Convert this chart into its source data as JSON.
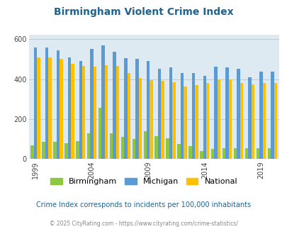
{
  "title": "Birmingham Violent Crime Index",
  "years": [
    1999,
    2000,
    2001,
    2002,
    2003,
    2004,
    2005,
    2006,
    2007,
    2008,
    2009,
    2010,
    2011,
    2012,
    2013,
    2014,
    2015,
    2016,
    2017,
    2018,
    2019,
    2020
  ],
  "birmingham": [
    70,
    85,
    85,
    80,
    90,
    130,
    255,
    130,
    110,
    100,
    140,
    115,
    105,
    75,
    65,
    40,
    50,
    55,
    55,
    55,
    55,
    55
  ],
  "michigan": [
    558,
    558,
    545,
    510,
    490,
    552,
    568,
    535,
    505,
    500,
    490,
    450,
    460,
    430,
    430,
    415,
    463,
    460,
    453,
    410,
    437,
    437
  ],
  "national": [
    507,
    507,
    500,
    475,
    465,
    463,
    470,
    465,
    430,
    405,
    395,
    390,
    385,
    363,
    370,
    380,
    398,
    400,
    382,
    375,
    379,
    379
  ],
  "birmingham_color": "#8dc63f",
  "michigan_color": "#5b9bd5",
  "national_color": "#ffc000",
  "background_color": "#deeaf1",
  "ylim": [
    0,
    620
  ],
  "yticks": [
    0,
    200,
    400,
    600
  ],
  "xlabel_ticks": [
    1999,
    2004,
    2009,
    2014,
    2019
  ],
  "subtitle": "Crime Index corresponds to incidents per 100,000 inhabitants",
  "footer": "© 2025 CityRating.com - https://www.cityrating.com/crime-statistics/",
  "title_color": "#1F6391",
  "subtitle_color": "#1F6391",
  "footer_color": "#888888",
  "grid_color": "#bbbbbb",
  "bar_width": 0.28
}
